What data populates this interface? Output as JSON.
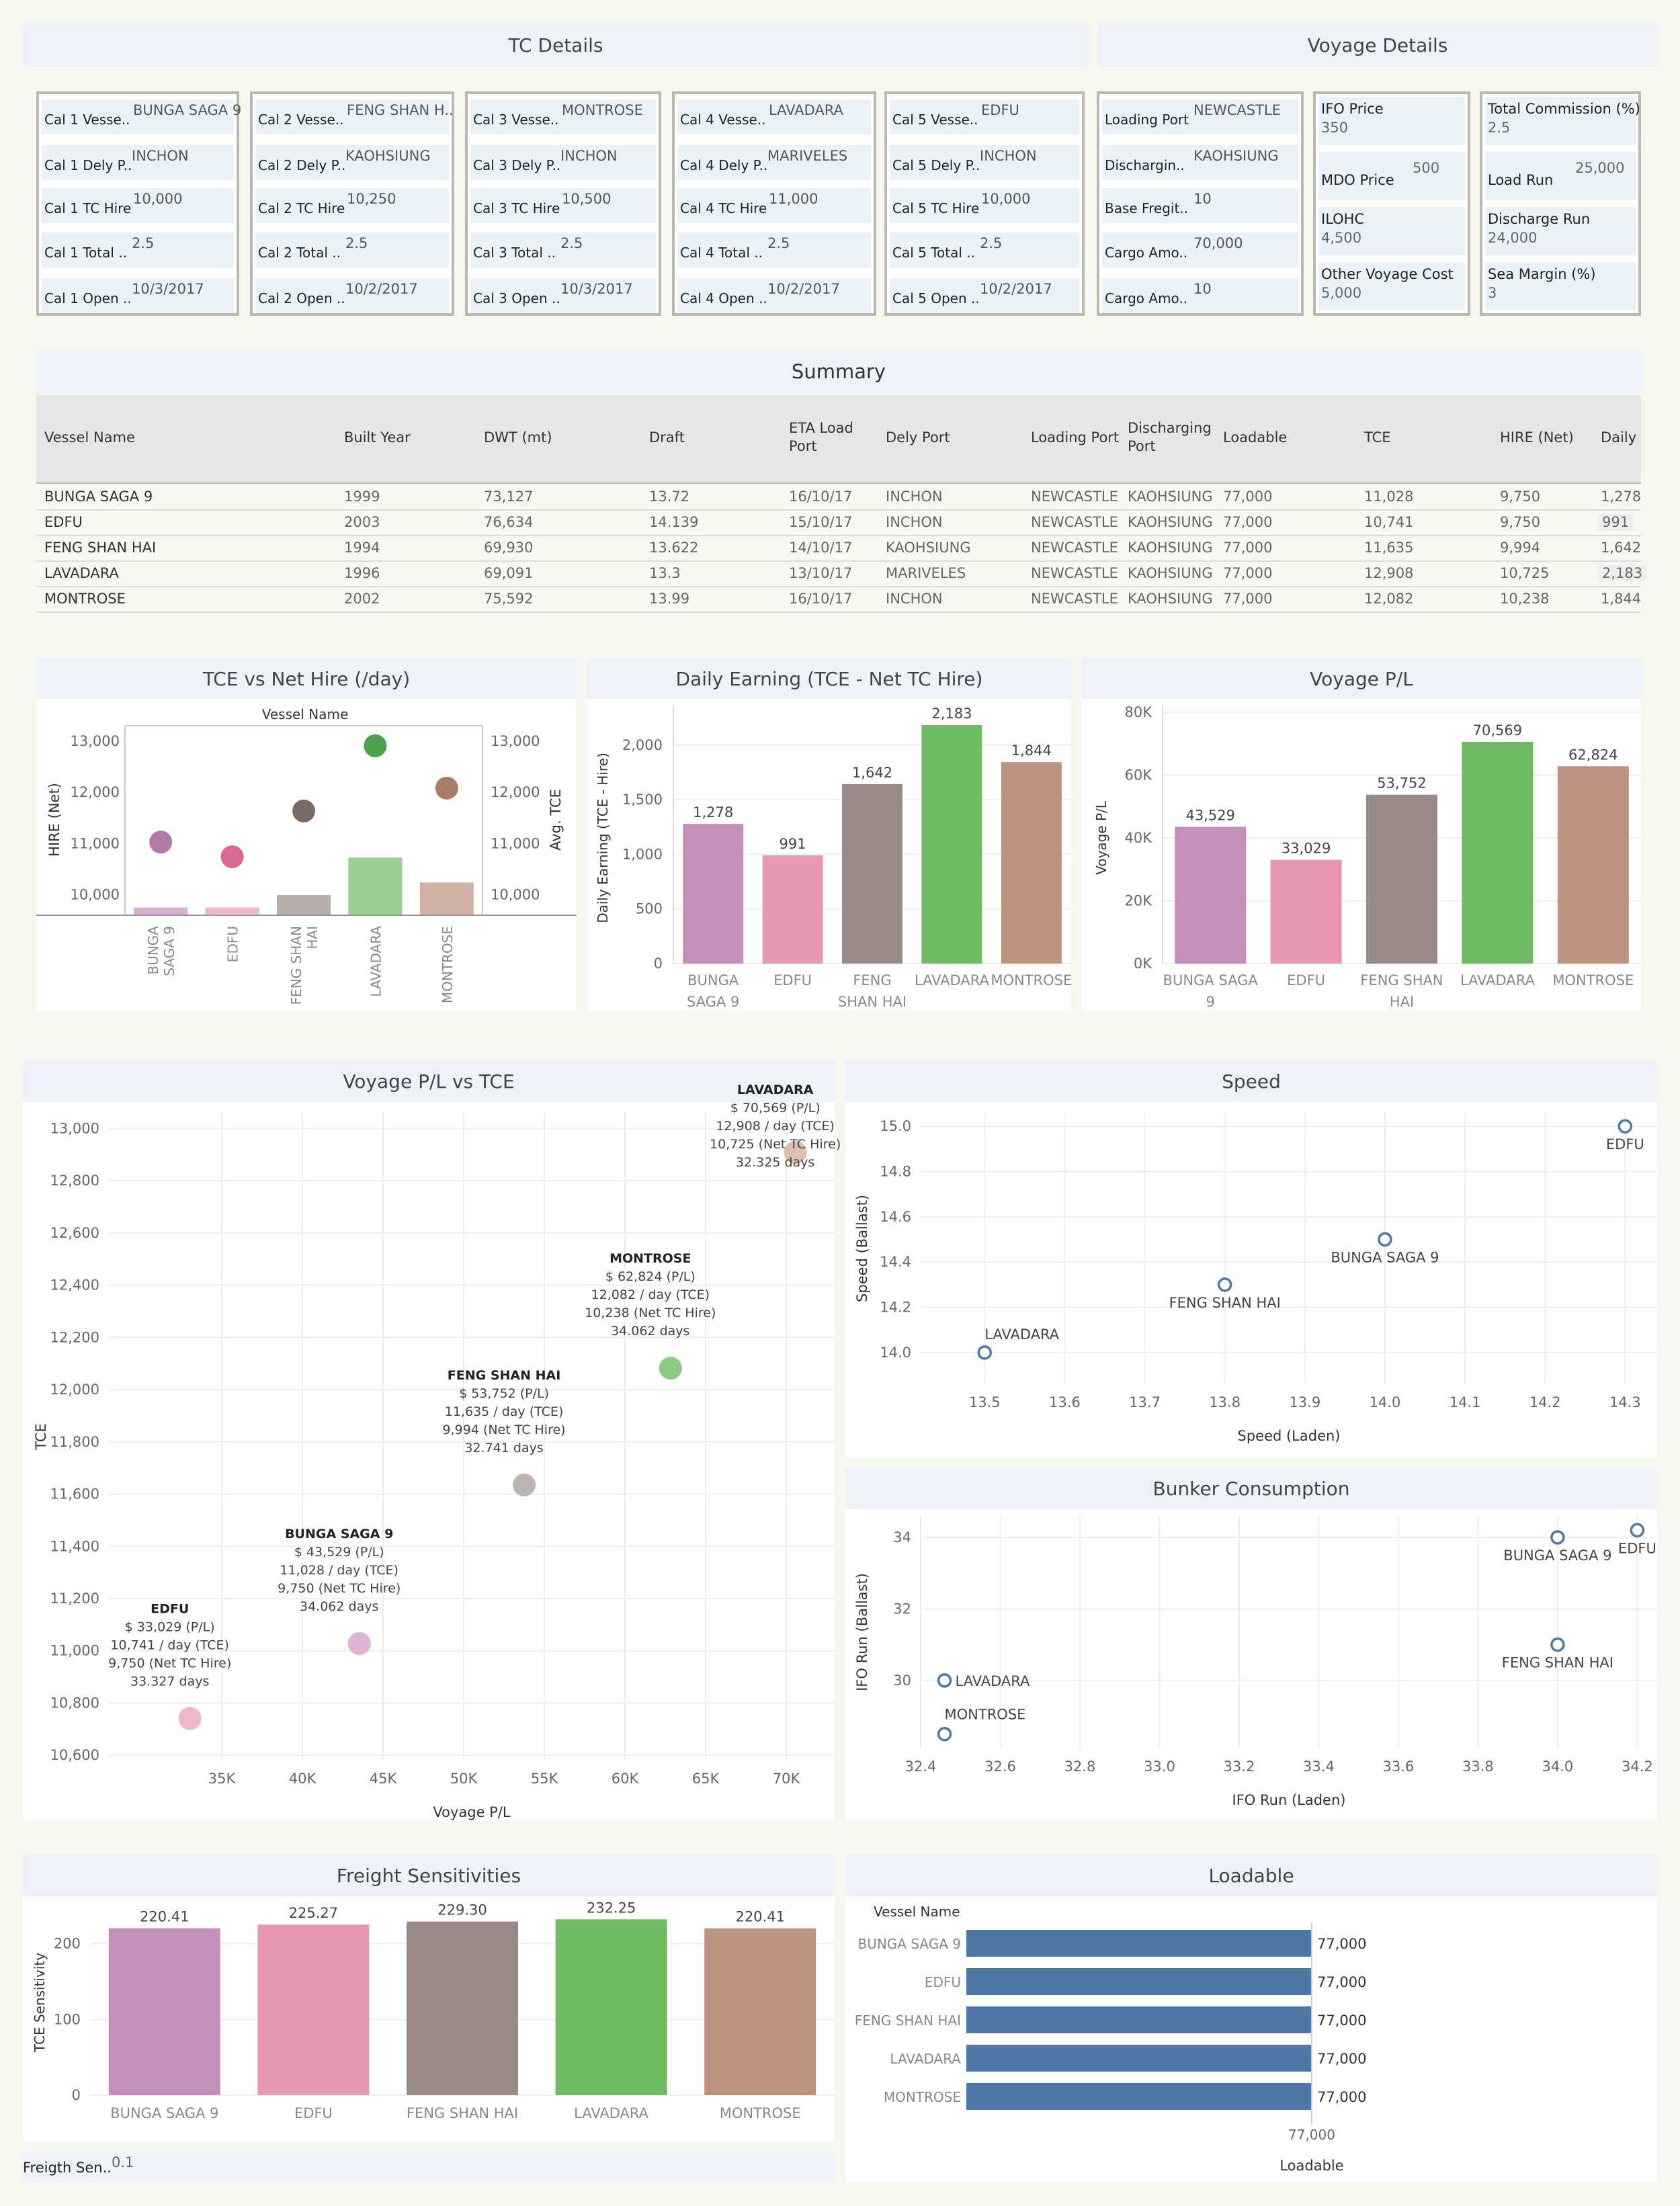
{
  "headers": {
    "tc_details": "TC Details",
    "voyage_details": "Voyage Details",
    "summary": "Summary",
    "tce_vs_hire": "TCE vs Net Hire (/day)",
    "daily_earning": "Daily Earning (TCE - Net TC Hire)",
    "voyage_pl": "Voyage P/L",
    "pl_vs_tce": "Voyage P/L vs TCE",
    "speed": "Speed",
    "bunker": "Bunker Consumption",
    "freight": "Freight Sensitivities",
    "loadable": "Loadable"
  },
  "colors": {
    "bunga": "#c48fba",
    "edfu": "#e898b2",
    "feng": "#988b87",
    "lavadara": "#6fbb64",
    "montrose": "#bc937f",
    "circle_blue": "#4e79a7",
    "loadable_bar": "#4e79a7"
  },
  "tc_cards": [
    {
      "rows": [
        {
          "label": "Cal 1 Vesse..",
          "value": "BUNGA SAGA 9"
        },
        {
          "label": "Cal 1 Dely P..",
          "value": "INCHON"
        },
        {
          "label": "Cal 1 TC Hire",
          "value": "10,000"
        },
        {
          "label": "Cal 1 Total ..",
          "value": "2.5"
        },
        {
          "label": "Cal 1 Open ..",
          "value": "10/3/2017"
        }
      ]
    },
    {
      "rows": [
        {
          "label": "Cal 2 Vesse..",
          "value": "FENG SHAN H.."
        },
        {
          "label": "Cal 2 Dely P..",
          "value": "KAOHSIUNG"
        },
        {
          "label": "Cal 2 TC Hire",
          "value": "10,250"
        },
        {
          "label": "Cal 2 Total ..",
          "value": "2.5"
        },
        {
          "label": "Cal 2 Open ..",
          "value": "10/2/2017"
        }
      ]
    },
    {
      "rows": [
        {
          "label": "Cal 3 Vesse..",
          "value": "MONTROSE"
        },
        {
          "label": "Cal 3 Dely P..",
          "value": "INCHON"
        },
        {
          "label": "Cal 3 TC Hire",
          "value": "10,500"
        },
        {
          "label": "Cal 3 Total ..",
          "value": "2.5"
        },
        {
          "label": "Cal 3 Open ..",
          "value": "10/3/2017"
        }
      ]
    },
    {
      "rows": [
        {
          "label": "Cal 4 Vesse..",
          "value": "LAVADARA"
        },
        {
          "label": "Cal 4 Dely P..",
          "value": "MARIVELES"
        },
        {
          "label": "Cal 4 TC Hire",
          "value": "11,000"
        },
        {
          "label": "Cal 4 Total ..",
          "value": "2.5"
        },
        {
          "label": "Cal 4 Open ..",
          "value": "10/2/2017"
        }
      ]
    },
    {
      "rows": [
        {
          "label": "Cal 5 Vesse..",
          "value": "EDFU"
        },
        {
          "label": "Cal 5 Dely P..",
          "value": "INCHON"
        },
        {
          "label": "Cal 5 TC Hire",
          "value": "10,000"
        },
        {
          "label": "Cal 5 Total ..",
          "value": "2.5"
        },
        {
          "label": "Cal 5 Open ..",
          "value": "10/2/2017"
        }
      ]
    }
  ],
  "voyage_card1": [
    {
      "label": "Loading Port",
      "value": "NEWCASTLE"
    },
    {
      "label": "Dischargin..",
      "value": "KAOHSIUNG"
    },
    {
      "label": "Base Fregit..",
      "value": "10"
    },
    {
      "label": "Cargo Amo..",
      "value": "70,000"
    },
    {
      "label": "Cargo Amo..",
      "value": "10"
    }
  ],
  "voyage_card2": [
    {
      "label": "IFO Price",
      "value": "350"
    },
    {
      "label": "MDO Price",
      "value": "500"
    },
    {
      "label": "ILOHC",
      "value": "4,500"
    },
    {
      "label": "Other Voyage Cost",
      "value": "5,000"
    }
  ],
  "voyage_card3": [
    {
      "label": "Total Commission (%)",
      "value": "2.5"
    },
    {
      "label": "Load Run",
      "value": "25,000"
    },
    {
      "label": "Discharge Run",
      "value": "24,000"
    },
    {
      "label": "Sea Margin (%)",
      "value": "3"
    }
  ],
  "summary": {
    "columns": [
      "Vessel Name",
      "Built Year",
      "DWT (mt)",
      "Draft",
      "ETA Load Port",
      "Dely Port",
      "Loading Port",
      "Discharging Port",
      "Loadable",
      "TCE",
      "HIRE (Net)",
      "Daily"
    ],
    "rows": [
      [
        "BUNGA SAGA 9",
        "1999",
        "73,127",
        "13.72",
        "16/10/17",
        "INCHON",
        "NEWCASTLE",
        "KAOHSIUNG",
        "77,000",
        "11,028",
        "9,750",
        "1,278"
      ],
      [
        "EDFU",
        "2003",
        "76,634",
        "14.139",
        "15/10/17",
        "INCHON",
        "NEWCASTLE",
        "KAOHSIUNG",
        "77,000",
        "10,741",
        "9,750",
        "991"
      ],
      [
        "FENG SHAN HAI",
        "1994",
        "69,930",
        "13.622",
        "14/10/17",
        "KAOHSIUNG",
        "NEWCASTLE",
        "KAOHSIUNG",
        "77,000",
        "11,635",
        "9,994",
        "1,642"
      ],
      [
        "LAVADARA",
        "1996",
        "69,091",
        "13.3",
        "13/10/17",
        "MARIVELES",
        "NEWCASTLE",
        "KAOHSIUNG",
        "77,000",
        "12,908",
        "10,725",
        "2,183"
      ],
      [
        "MONTROSE",
        "2002",
        "75,592",
        "13.99",
        "16/10/17",
        "INCHON",
        "NEWCASTLE",
        "KAOHSIUNG",
        "77,000",
        "12,082",
        "10,238",
        "1,844"
      ]
    ]
  },
  "freight_param": {
    "label": "Freigth Sen..",
    "value": "0.1"
  },
  "chart_data": [
    {
      "id": "tce_vs_hire",
      "type": "bar",
      "title": "TCE vs Net Hire (/day)",
      "legend_title": "Vessel Name",
      "categories": [
        "BUNGA SAGA 9",
        "EDFU",
        "FENG SHAN HAI",
        "LAVADARA",
        "MONTROSE"
      ],
      "category_labels": [
        [
          "BUNGA",
          "SAGA 9"
        ],
        [
          "EDFU"
        ],
        [
          "FENG SHAN",
          "HAI"
        ],
        [
          "LAVADARA"
        ],
        [
          "MONTROSE"
        ]
      ],
      "series": [
        {
          "name": "HIRE (Net)",
          "type": "bar",
          "values": [
            9750,
            9750,
            9994,
            10725,
            10238
          ]
        },
        {
          "name": "Avg. TCE",
          "type": "circle",
          "values": [
            11028,
            10741,
            11635,
            12908,
            12082
          ]
        }
      ],
      "ylabel": "HIRE (Net)",
      "y2label": "Avg. TCE",
      "ylim": [
        9600,
        13300
      ],
      "yticks": [
        "13,000",
        "12,000",
        "11,000",
        "10,000"
      ],
      "ytick_values": [
        13000,
        12000,
        11000,
        10000
      ]
    },
    {
      "id": "daily_earning",
      "type": "bar",
      "title": "Daily Earning (TCE - Net TC Hire)",
      "categories": [
        "BUNGA SAGA 9",
        "EDFU",
        "FENG SHAN HAI",
        "LAVADARA",
        "MONTROSE"
      ],
      "category_labels": [
        [
          "BUNGA",
          "SAGA 9"
        ],
        [
          "EDFU"
        ],
        [
          "FENG",
          "SHAN HAI"
        ],
        [
          "LAVADARA"
        ],
        [
          "MONTROSE"
        ]
      ],
      "values": [
        1278,
        991,
        1642,
        2183,
        1844
      ],
      "data_labels": [
        "1,278",
        "991",
        "1,642",
        "2,183",
        "1,844"
      ],
      "ylabel": "Daily Earning (TCE - Hire)",
      "ylim": [
        0,
        2300
      ],
      "yticks": [
        "2,000",
        "1,500",
        "1,000",
        "500",
        "0"
      ],
      "ytick_values": [
        2000,
        1500,
        1000,
        500,
        0
      ]
    },
    {
      "id": "voyage_pl",
      "type": "bar",
      "title": "Voyage P/L",
      "categories": [
        "BUNGA SAGA 9",
        "EDFU",
        "FENG SHAN HAI",
        "LAVADARA",
        "MONTROSE"
      ],
      "category_labels": [
        [
          "BUNGA SAGA",
          "9"
        ],
        [
          "EDFU"
        ],
        [
          "FENG SHAN",
          "HAI"
        ],
        [
          "LAVADARA"
        ],
        [
          "MONTROSE"
        ]
      ],
      "values": [
        43529,
        33029,
        53752,
        70569,
        62824
      ],
      "data_labels": [
        "43,529",
        "33,029",
        "53,752",
        "70,569",
        "62,824"
      ],
      "ylabel": "Voyage P/L",
      "ylim": [
        0,
        80000
      ],
      "yticks": [
        "80K",
        "60K",
        "40K",
        "20K",
        "0K"
      ],
      "ytick_values": [
        80000,
        60000,
        40000,
        20000,
        0
      ]
    },
    {
      "id": "pl_vs_tce",
      "type": "scatter",
      "title": "Voyage P/L vs TCE",
      "xlabel": "Voyage P/L",
      "ylabel": "TCE",
      "xlim": [
        28000,
        73000
      ],
      "ylim": [
        10580,
        13060
      ],
      "xticks": [
        "35K",
        "40K",
        "45K",
        "50K",
        "55K",
        "60K",
        "65K",
        "70K"
      ],
      "xtick_values": [
        35000,
        40000,
        45000,
        50000,
        55000,
        60000,
        65000,
        70000
      ],
      "yticks": [
        "13,000",
        "12,800",
        "12,600",
        "12,400",
        "12,200",
        "12,000",
        "11,800",
        "11,600",
        "11,400",
        "11,200",
        "11,000",
        "10,800",
        "10,600"
      ],
      "ytick_values": [
        13000,
        12800,
        12600,
        12400,
        12200,
        12000,
        11800,
        11600,
        11400,
        11200,
        11000,
        10800,
        10600
      ],
      "points": [
        {
          "name": "EDFU",
          "x": 33029,
          "y": 10741,
          "lines": [
            "$ 33,029 (P/L)",
            "10,741 / day (TCE)",
            "9,750 (Net TC Hire)",
            "33.327 days"
          ]
        },
        {
          "name": "BUNGA SAGA 9",
          "x": 43529,
          "y": 11028,
          "lines": [
            "$ 43,529 (P/L)",
            "11,028 / day (TCE)",
            "9,750 (Net TC Hire)",
            "34.062 days"
          ]
        },
        {
          "name": "FENG SHAN HAI",
          "x": 53752,
          "y": 11635,
          "lines": [
            "$ 53,752 (P/L)",
            "11,635 / day (TCE)",
            "9,994 (Net TC Hire)",
            "32.741 days"
          ]
        },
        {
          "name": "MONTROSE",
          "x": 62824,
          "y": 12082,
          "lines": [
            "$ 62,824 (P/L)",
            "12,082 / day (TCE)",
            "10,238 (Net TC Hire)",
            "34.062 days"
          ]
        },
        {
          "name": "LAVADARA",
          "x": 70569,
          "y": 12908,
          "lines": [
            "$ 70,569 (P/L)",
            "12,908 / day (TCE)",
            "10,725 (Net TC Hire)",
            "32.325 days"
          ]
        }
      ]
    },
    {
      "id": "speed",
      "type": "scatter",
      "title": "Speed",
      "xlabel": "Speed (Laden)",
      "ylabel": "Speed (Ballast)",
      "xlim": [
        13.42,
        14.34
      ],
      "ylim": [
        13.86,
        15.06
      ],
      "xticks": [
        "13.5",
        "13.6",
        "13.7",
        "13.8",
        "13.9",
        "14.0",
        "14.1",
        "14.2",
        "14.3"
      ],
      "xtick_values": [
        13.5,
        13.6,
        13.7,
        13.8,
        13.9,
        14.0,
        14.1,
        14.2,
        14.3
      ],
      "yticks": [
        "15.0",
        "14.8",
        "14.6",
        "14.4",
        "14.2",
        "14.0"
      ],
      "ytick_values": [
        15.0,
        14.8,
        14.6,
        14.4,
        14.2,
        14.0
      ],
      "points": [
        {
          "name": "EDFU",
          "x": 14.3,
          "y": 15.0
        },
        {
          "name": "BUNGA SAGA 9",
          "x": 14.0,
          "y": 14.5
        },
        {
          "name": "FENG SHAN HAI",
          "x": 13.8,
          "y": 14.3
        },
        {
          "name": "LAVADARA",
          "x": 13.5,
          "y": 14.0
        }
      ]
    },
    {
      "id": "bunker",
      "type": "scatter",
      "title": "Bunker Consumption",
      "xlabel": "IFO Run (Laden)",
      "ylabel": "IFO Run (Ballast)",
      "xlim": [
        32.4,
        34.25
      ],
      "ylim": [
        28.1,
        34.6
      ],
      "xticks": [
        "32.4",
        "32.6",
        "32.8",
        "33.0",
        "33.2",
        "33.4",
        "33.6",
        "33.8",
        "34.0",
        "34.2"
      ],
      "xtick_values": [
        32.4,
        32.6,
        32.8,
        33.0,
        33.2,
        33.4,
        33.6,
        33.8,
        34.0,
        34.2
      ],
      "yticks": [
        "34",
        "32",
        "30"
      ],
      "ytick_values": [
        34,
        32,
        30
      ],
      "points": [
        {
          "name": "BUNGA SAGA 9",
          "x": 34.0,
          "y": 34.0
        },
        {
          "name": "EDFU",
          "x": 34.2,
          "y": 34.2
        },
        {
          "name": "FENG SHAN HAI",
          "x": 34.0,
          "y": 31.0
        },
        {
          "name": "LAVADARA",
          "x": 32.46,
          "y": 30.0
        },
        {
          "name": "MONTROSE",
          "x": 32.46,
          "y": 28.5
        }
      ]
    },
    {
      "id": "freight",
      "type": "bar",
      "title": "Freight Sensitivities",
      "categories": [
        "BUNGA SAGA 9",
        "EDFU",
        "FENG SHAN HAI",
        "LAVADARA",
        "MONTROSE"
      ],
      "values": [
        220.41,
        225.27,
        229.3,
        232.25,
        220.41
      ],
      "data_labels": [
        "220.41",
        "225.27",
        "229.30",
        "232.25",
        "220.41"
      ],
      "ylabel": "TCE Sensitivity",
      "ylim": [
        0,
        245
      ],
      "yticks": [
        "200",
        "100",
        "0"
      ],
      "ytick_values": [
        200,
        100,
        0
      ]
    },
    {
      "id": "loadable",
      "type": "bar",
      "title": "Loadable",
      "legend_title": "Vessel Name",
      "categories": [
        "BUNGA SAGA 9",
        "EDFU",
        "FENG SHAN HAI",
        "LAVADARA",
        "MONTROSE"
      ],
      "values": [
        77000,
        77000,
        77000,
        77000,
        77000
      ],
      "data_labels": [
        "77,000",
        "77,000",
        "77,000",
        "77,000",
        "77,000"
      ],
      "xlabel": "Loadable",
      "xticks": [
        "77,000"
      ]
    }
  ]
}
